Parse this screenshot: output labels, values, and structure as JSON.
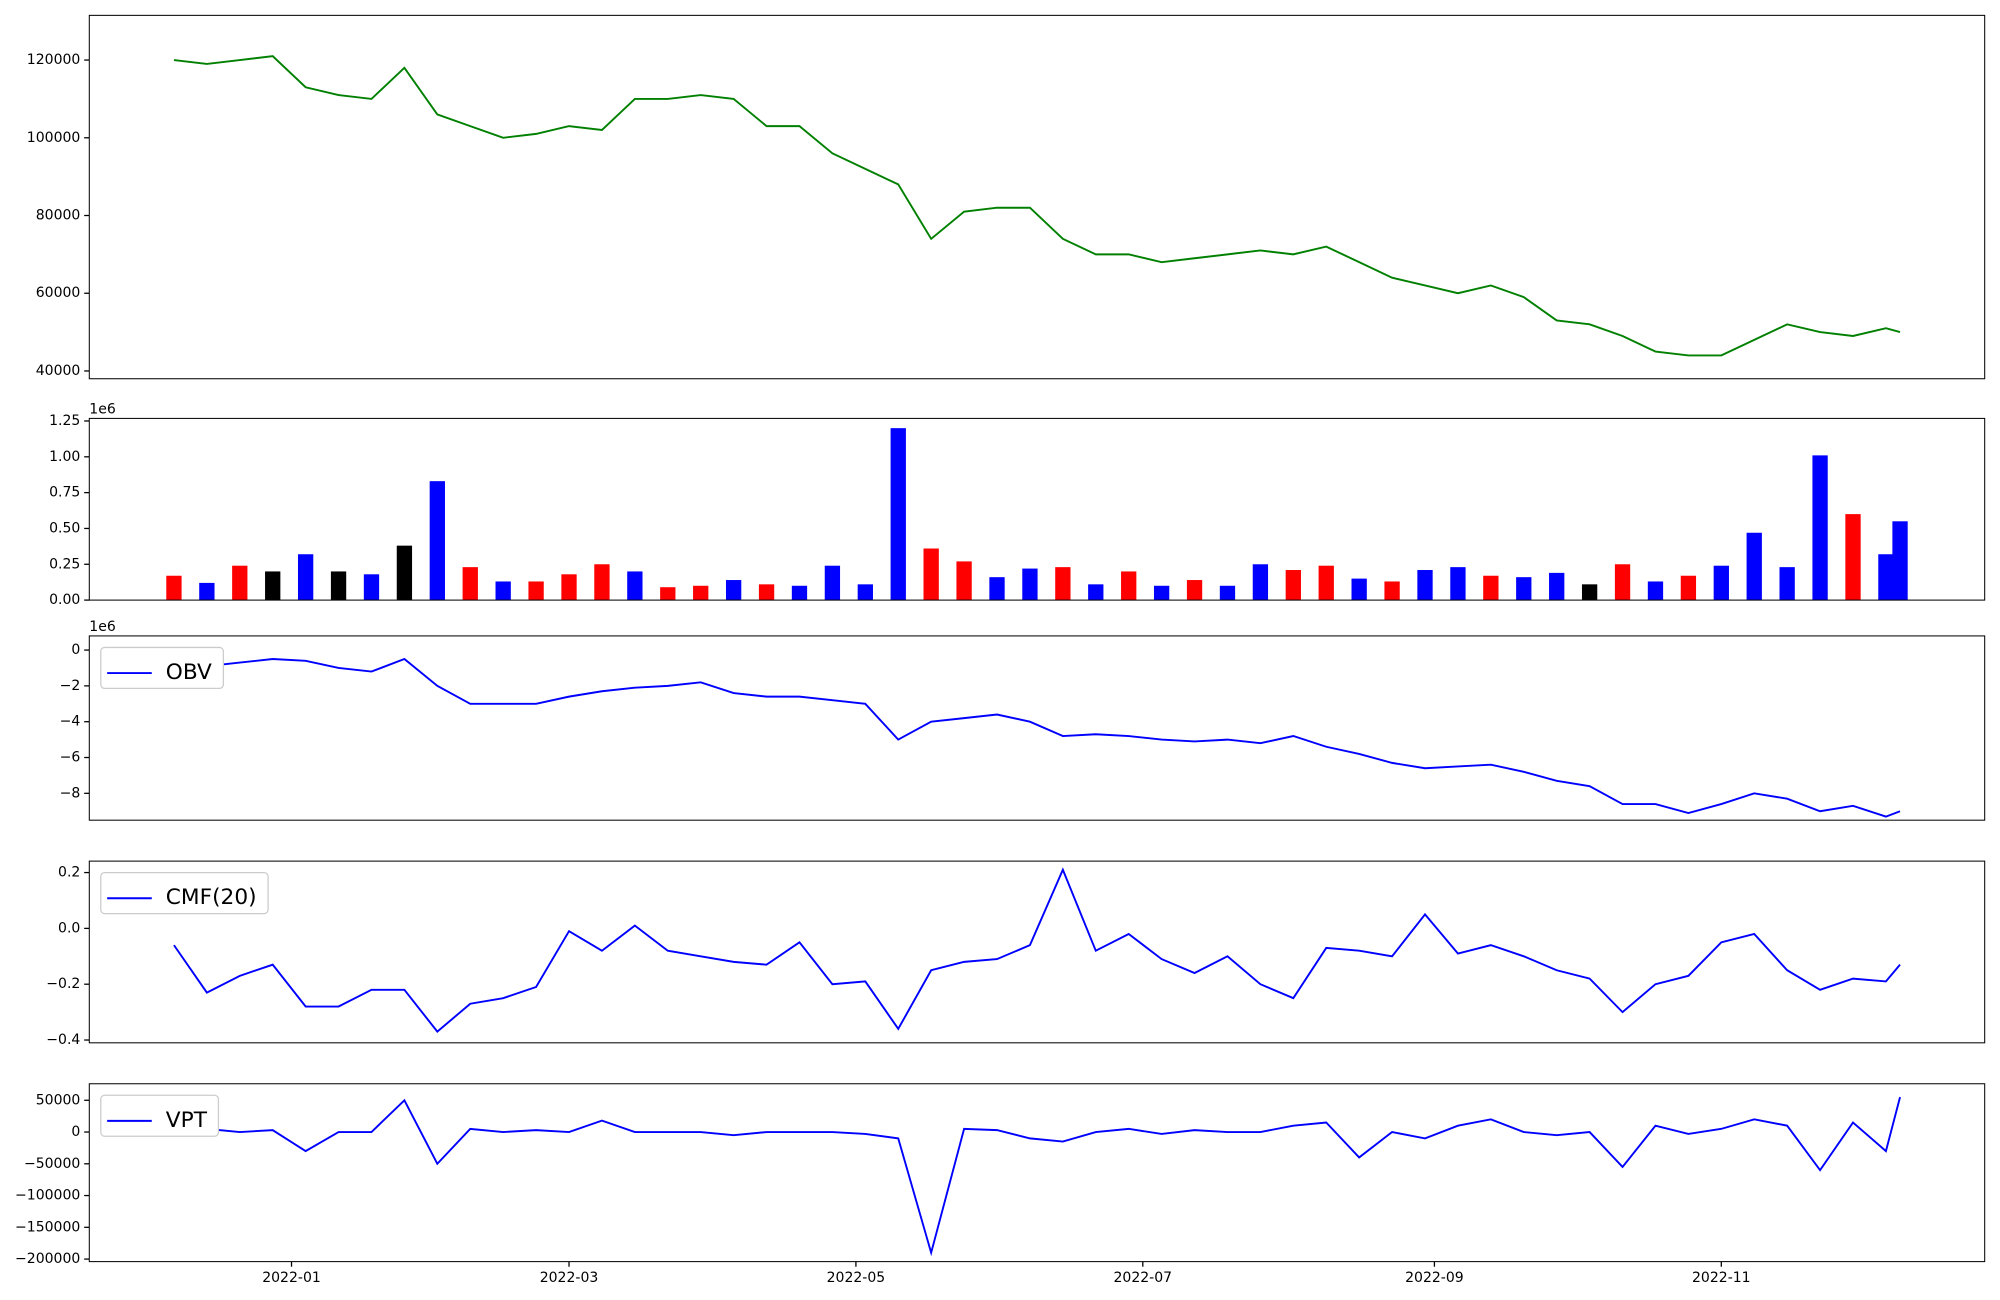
{
  "chart_data": [
    {
      "type": "line",
      "xlim": [
        "2021-11-19",
        "2022-12-27"
      ],
      "ylim": [
        38000,
        131500
      ],
      "yticks": [
        40000,
        60000,
        80000,
        100000,
        120000
      ],
      "x": [
        "2021-12-07",
        "2021-12-14",
        "2021-12-21",
        "2021-12-28",
        "2022-01-04",
        "2022-01-11",
        "2022-01-18",
        "2022-01-25",
        "2022-02-01",
        "2022-02-08",
        "2022-02-15",
        "2022-02-22",
        "2022-03-01",
        "2022-03-08",
        "2022-03-15",
        "2022-03-22",
        "2022-03-29",
        "2022-04-05",
        "2022-04-12",
        "2022-04-19",
        "2022-04-26",
        "2022-05-03",
        "2022-05-10",
        "2022-05-17",
        "2022-05-24",
        "2022-05-31",
        "2022-06-07",
        "2022-06-14",
        "2022-06-21",
        "2022-06-28",
        "2022-07-05",
        "2022-07-12",
        "2022-07-19",
        "2022-07-26",
        "2022-08-02",
        "2022-08-09",
        "2022-08-16",
        "2022-08-23",
        "2022-08-30",
        "2022-09-06",
        "2022-09-13",
        "2022-09-20",
        "2022-09-27",
        "2022-10-04",
        "2022-10-11",
        "2022-10-18",
        "2022-10-25",
        "2022-11-01",
        "2022-11-08",
        "2022-11-15",
        "2022-11-22",
        "2022-11-29",
        "2022-12-06",
        "2022-12-09"
      ],
      "series": [
        {
          "color": "#008000",
          "values": [
            120000,
            119000,
            120000,
            121000,
            113000,
            111000,
            110000,
            118000,
            106000,
            103000,
            100000,
            101000,
            103000,
            102000,
            110000,
            110000,
            111000,
            110000,
            103000,
            103000,
            96000,
            92000,
            88000,
            74000,
            81000,
            82000,
            82000,
            74000,
            70000,
            70000,
            68000,
            69000,
            70000,
            71000,
            70000,
            72000,
            68000,
            64000,
            62000,
            60000,
            62000,
            59000,
            53000,
            52000,
            49000,
            45000,
            44000,
            44000,
            48000,
            52000,
            50000,
            49000,
            51000,
            50000
          ]
        }
      ]
    },
    {
      "type": "bar",
      "xlim": [
        "2021-11-19",
        "2022-12-27"
      ],
      "ylim": [
        0,
        1268000
      ],
      "offset_label": "1e6",
      "yticks": [
        {
          "value": 0,
          "label": "0.00"
        },
        {
          "value": 250000,
          "label": "0.25"
        },
        {
          "value": 500000,
          "label": "0.50"
        },
        {
          "value": 750000,
          "label": "0.75"
        },
        {
          "value": 1000000,
          "label": "1.00"
        },
        {
          "value": 1250000,
          "label": "1.25"
        }
      ],
      "x": [
        "2021-12-07",
        "2021-12-14",
        "2021-12-21",
        "2021-12-28",
        "2022-01-04",
        "2022-01-11",
        "2022-01-18",
        "2022-01-25",
        "2022-02-01",
        "2022-02-08",
        "2022-02-15",
        "2022-02-22",
        "2022-03-01",
        "2022-03-08",
        "2022-03-15",
        "2022-03-22",
        "2022-03-29",
        "2022-04-05",
        "2022-04-12",
        "2022-04-19",
        "2022-04-26",
        "2022-05-03",
        "2022-05-10",
        "2022-05-17",
        "2022-05-24",
        "2022-05-31",
        "2022-06-07",
        "2022-06-14",
        "2022-06-21",
        "2022-06-28",
        "2022-07-05",
        "2022-07-12",
        "2022-07-19",
        "2022-07-26",
        "2022-08-02",
        "2022-08-09",
        "2022-08-16",
        "2022-08-23",
        "2022-08-30",
        "2022-09-06",
        "2022-09-13",
        "2022-09-20",
        "2022-09-27",
        "2022-10-04",
        "2022-10-11",
        "2022-10-18",
        "2022-10-25",
        "2022-11-01",
        "2022-11-08",
        "2022-11-15",
        "2022-11-22",
        "2022-11-29",
        "2022-12-06",
        "2022-12-09"
      ],
      "values": [
        170000,
        120000,
        240000,
        200000,
        320000,
        200000,
        180000,
        380000,
        830000,
        230000,
        130000,
        130000,
        180000,
        250000,
        200000,
        90000,
        100000,
        140000,
        110000,
        100000,
        240000,
        110000,
        1200000,
        360000,
        270000,
        160000,
        220000,
        230000,
        110000,
        200000,
        100000,
        140000,
        100000,
        250000,
        210000,
        240000,
        150000,
        130000,
        210000,
        230000,
        170000,
        160000,
        190000,
        110000,
        250000,
        130000,
        170000,
        240000,
        470000,
        230000,
        1010000,
        600000,
        320000,
        550000
      ],
      "colors": [
        "red",
        "blue",
        "red",
        "black",
        "blue",
        "black",
        "blue",
        "black",
        "blue",
        "red",
        "blue",
        "red",
        "red",
        "red",
        "blue",
        "red",
        "red",
        "blue",
        "red",
        "blue",
        "blue",
        "blue",
        "blue",
        "red",
        "red",
        "blue",
        "blue",
        "red",
        "blue",
        "red",
        "blue",
        "red",
        "blue",
        "blue",
        "red",
        "red",
        "blue",
        "red",
        "blue",
        "blue",
        "red",
        "blue",
        "blue",
        "black",
        "red",
        "blue",
        "red",
        "blue",
        "blue",
        "blue",
        "blue",
        "red",
        "blue",
        "blue"
      ]
    },
    {
      "type": "line",
      "xlim": [
        "2021-11-19",
        "2022-12-27"
      ],
      "ylim": [
        -9500000,
        790000
      ],
      "offset_label": "1e6",
      "legend": "upper left",
      "yticks": [
        {
          "value": -8000000,
          "label": "−8"
        },
        {
          "value": -6000000,
          "label": "−6"
        },
        {
          "value": -4000000,
          "label": "−4"
        },
        {
          "value": -2000000,
          "label": "−2"
        },
        0
      ],
      "x": [
        "2021-12-07",
        "2021-12-14",
        "2021-12-21",
        "2021-12-28",
        "2022-01-04",
        "2022-01-11",
        "2022-01-18",
        "2022-01-25",
        "2022-02-01",
        "2022-02-08",
        "2022-02-15",
        "2022-02-22",
        "2022-03-01",
        "2022-03-08",
        "2022-03-15",
        "2022-03-22",
        "2022-03-29",
        "2022-04-05",
        "2022-04-12",
        "2022-04-19",
        "2022-04-26",
        "2022-05-03",
        "2022-05-10",
        "2022-05-17",
        "2022-05-24",
        "2022-05-31",
        "2022-06-07",
        "2022-06-14",
        "2022-06-21",
        "2022-06-28",
        "2022-07-05",
        "2022-07-12",
        "2022-07-19",
        "2022-07-26",
        "2022-08-02",
        "2022-08-09",
        "2022-08-16",
        "2022-08-23",
        "2022-08-30",
        "2022-09-06",
        "2022-09-13",
        "2022-09-20",
        "2022-09-27",
        "2022-10-04",
        "2022-10-11",
        "2022-10-18",
        "2022-10-25",
        "2022-11-01",
        "2022-11-08",
        "2022-11-15",
        "2022-11-22",
        "2022-11-29",
        "2022-12-06",
        "2022-12-09"
      ],
      "series": [
        {
          "name": "OBV",
          "color": "#0000ff",
          "values": [
            -600000,
            -900000,
            -700000,
            -500000,
            -600000,
            -1000000,
            -1200000,
            -500000,
            -2000000,
            -3000000,
            -3000000,
            -3000000,
            -2600000,
            -2300000,
            -2100000,
            -2000000,
            -1800000,
            -2400000,
            -2600000,
            -2600000,
            -2800000,
            -3000000,
            -5000000,
            -4000000,
            -3800000,
            -3600000,
            -4000000,
            -4800000,
            -4700000,
            -4800000,
            -5000000,
            -5100000,
            -5000000,
            -5200000,
            -4800000,
            -5400000,
            -5800000,
            -6300000,
            -6600000,
            -6500000,
            -6400000,
            -6800000,
            -7300000,
            -7600000,
            -8600000,
            -8600000,
            -9100000,
            -8600000,
            -8000000,
            -8300000,
            -9000000,
            -8700000,
            -9300000,
            -9000000
          ]
        }
      ]
    },
    {
      "type": "line",
      "xlim": [
        "2021-11-19",
        "2022-12-27"
      ],
      "ylim": [
        -0.41,
        0.241
      ],
      "legend": "upper left",
      "yticks": [
        {
          "value": -0.4,
          "label": "−0.4"
        },
        {
          "value": -0.2,
          "label": "−0.2"
        },
        {
          "value": 0,
          "label": "0.0"
        },
        0.2
      ],
      "x": [
        "2021-12-07",
        "2021-12-14",
        "2021-12-21",
        "2021-12-28",
        "2022-01-04",
        "2022-01-11",
        "2022-01-18",
        "2022-01-25",
        "2022-02-01",
        "2022-02-08",
        "2022-02-15",
        "2022-02-22",
        "2022-03-01",
        "2022-03-08",
        "2022-03-15",
        "2022-03-22",
        "2022-03-29",
        "2022-04-05",
        "2022-04-12",
        "2022-04-19",
        "2022-04-26",
        "2022-05-03",
        "2022-05-10",
        "2022-05-17",
        "2022-05-24",
        "2022-05-31",
        "2022-06-07",
        "2022-06-14",
        "2022-06-21",
        "2022-06-28",
        "2022-07-05",
        "2022-07-12",
        "2022-07-19",
        "2022-07-26",
        "2022-08-02",
        "2022-08-09",
        "2022-08-16",
        "2022-08-23",
        "2022-08-30",
        "2022-09-06",
        "2022-09-13",
        "2022-09-20",
        "2022-09-27",
        "2022-10-04",
        "2022-10-11",
        "2022-10-18",
        "2022-10-25",
        "2022-11-01",
        "2022-11-08",
        "2022-11-15",
        "2022-11-22",
        "2022-11-29",
        "2022-12-06",
        "2022-12-09"
      ],
      "series": [
        {
          "name": "CMF(20)",
          "color": "#0000ff",
          "values": [
            -0.06,
            -0.23,
            -0.17,
            -0.13,
            -0.28,
            -0.28,
            -0.22,
            -0.22,
            -0.37,
            -0.27,
            -0.25,
            -0.21,
            -0.01,
            -0.08,
            0.01,
            -0.08,
            -0.1,
            -0.12,
            -0.13,
            -0.05,
            -0.2,
            -0.19,
            -0.36,
            -0.15,
            -0.12,
            -0.11,
            -0.06,
            0.21,
            -0.08,
            -0.02,
            -0.11,
            -0.16,
            -0.1,
            -0.2,
            -0.25,
            -0.07,
            -0.08,
            -0.1,
            0.05,
            -0.09,
            -0.06,
            -0.1,
            -0.15,
            -0.18,
            -0.3,
            -0.2,
            -0.17,
            -0.05,
            -0.02,
            -0.15,
            -0.22,
            -0.18,
            -0.19,
            -0.13
          ]
        }
      ]
    },
    {
      "type": "line",
      "xlim": [
        "2021-11-19",
        "2022-12-27"
      ],
      "ylim": [
        -204000,
        76000
      ],
      "legend": "upper left",
      "yticks": [
        {
          "value": -200000,
          "label": "−200000"
        },
        {
          "value": -150000,
          "label": "−150000"
        },
        {
          "value": -100000,
          "label": "−100000"
        },
        {
          "value": -50000,
          "label": "−50000"
        },
        0,
        50000
      ],
      "xticks": [
        {
          "value": "2022-01-01",
          "label": "2022-01"
        },
        {
          "value": "2022-03-01",
          "label": "2022-03"
        },
        {
          "value": "2022-05-01",
          "label": "2022-05"
        },
        {
          "value": "2022-07-01",
          "label": "2022-07"
        },
        {
          "value": "2022-09-01",
          "label": "2022-09"
        },
        {
          "value": "2022-11-01",
          "label": "2022-11"
        }
      ],
      "x": [
        "2021-12-07",
        "2021-12-14",
        "2021-12-21",
        "2021-12-28",
        "2022-01-04",
        "2022-01-11",
        "2022-01-18",
        "2022-01-25",
        "2022-02-01",
        "2022-02-08",
        "2022-02-15",
        "2022-02-22",
        "2022-03-01",
        "2022-03-08",
        "2022-03-15",
        "2022-03-22",
        "2022-03-29",
        "2022-04-05",
        "2022-04-12",
        "2022-04-19",
        "2022-04-26",
        "2022-05-03",
        "2022-05-10",
        "2022-05-17",
        "2022-05-24",
        "2022-05-31",
        "2022-06-07",
        "2022-06-14",
        "2022-06-21",
        "2022-06-28",
        "2022-07-05",
        "2022-07-12",
        "2022-07-19",
        "2022-07-26",
        "2022-08-02",
        "2022-08-09",
        "2022-08-16",
        "2022-08-23",
        "2022-08-30",
        "2022-09-06",
        "2022-09-13",
        "2022-09-20",
        "2022-09-27",
        "2022-10-04",
        "2022-10-11",
        "2022-10-18",
        "2022-10-25",
        "2022-11-01",
        "2022-11-08",
        "2022-11-15",
        "2022-11-22",
        "2022-11-29",
        "2022-12-06",
        "2022-12-09"
      ],
      "series": [
        {
          "name": "VPT",
          "color": "#0000ff",
          "values": [
            0,
            5000,
            0,
            3000,
            -30000,
            0,
            0,
            50000,
            -50000,
            5000,
            0,
            3000,
            0,
            18000,
            0,
            0,
            0,
            -5000,
            0,
            0,
            0,
            -3000,
            -10000,
            -190000,
            5000,
            3000,
            -10000,
            -15000,
            0,
            5000,
            -3000,
            3000,
            0,
            0,
            10000,
            15000,
            -40000,
            0,
            -10000,
            10000,
            20000,
            0,
            -5000,
            0,
            -55000,
            10000,
            -3000,
            5000,
            20000,
            10000,
            -60000,
            15000,
            -30000,
            55000
          ]
        }
      ]
    }
  ]
}
